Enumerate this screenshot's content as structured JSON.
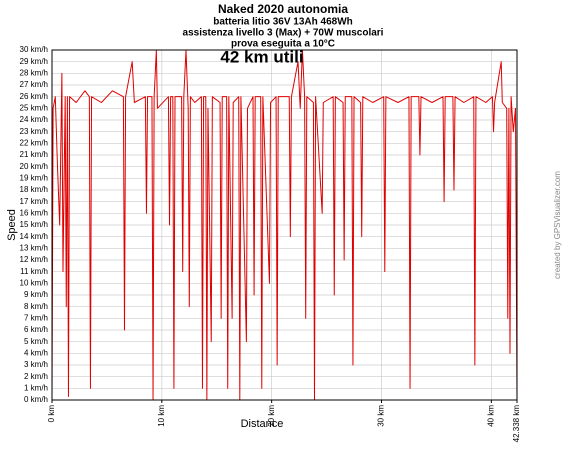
{
  "chart_data": {
    "type": "line",
    "title": "Naked 2020 autonomia",
    "subtitle": [
      "batteria litio 36V  13Ah   468Wh",
      "assistenza livello 3 (Max) + 70W muscolari",
      "prova eseguita a 10°C"
    ],
    "annotation": "42 km utili",
    "x_label": "Distance",
    "y_label": "Speed",
    "credit": "created by GPSVisualizer.com",
    "grid": true,
    "xlim": [
      0,
      42.338
    ],
    "ylim": [
      0,
      30
    ],
    "xticks": [
      {
        "value": 0,
        "label": "0 km"
      },
      {
        "value": 10,
        "label": "10 km"
      },
      {
        "value": 20,
        "label": "20 km"
      },
      {
        "value": 30,
        "label": "30 km"
      },
      {
        "value": 40,
        "label": "40 km"
      },
      {
        "value": 42.338,
        "label": "42.338 km"
      }
    ],
    "yticks": [
      {
        "value": 0,
        "label": "0 km/h"
      },
      {
        "value": 1,
        "label": "1 km/h"
      },
      {
        "value": 2,
        "label": "2 km/h"
      },
      {
        "value": 3,
        "label": "3 km/h"
      },
      {
        "value": 4,
        "label": "4 km/h"
      },
      {
        "value": 5,
        "label": "5 km/h"
      },
      {
        "value": 6,
        "label": "6 km/h"
      },
      {
        "value": 7,
        "label": "7 km/h"
      },
      {
        "value": 8,
        "label": "8 km/h"
      },
      {
        "value": 9,
        "label": "9 km/h"
      },
      {
        "value": 10,
        "label": "10 km/h"
      },
      {
        "value": 11,
        "label": "11 km/h"
      },
      {
        "value": 12,
        "label": "12 km/h"
      },
      {
        "value": 13,
        "label": "13 km/h"
      },
      {
        "value": 14,
        "label": "14 km/h"
      },
      {
        "value": 15,
        "label": "15 km/h"
      },
      {
        "value": 16,
        "label": "16 km/h"
      },
      {
        "value": 17,
        "label": "17 km/h"
      },
      {
        "value": 18,
        "label": "18 km/h"
      },
      {
        "value": 19,
        "label": "19 km/h"
      },
      {
        "value": 20,
        "label": "20 km/h"
      },
      {
        "value": 21,
        "label": "21 km/h"
      },
      {
        "value": 22,
        "label": "22 km/h"
      },
      {
        "value": 23,
        "label": "23 km/h"
      },
      {
        "value": 24,
        "label": "24 km/h"
      },
      {
        "value": 25,
        "label": "25 km/h"
      },
      {
        "value": 26,
        "label": "26 km/h"
      },
      {
        "value": 27,
        "label": "27 km/h"
      },
      {
        "value": 28,
        "label": "28 km/h"
      },
      {
        "value": 29,
        "label": "29 km/h"
      },
      {
        "value": 30,
        "label": "30 km/h"
      }
    ],
    "color": "#e00000",
    "x": [
      0,
      0.1,
      0.3,
      0.5,
      0.7,
      0.9,
      1.0,
      1.2,
      1.3,
      1.4,
      1.5,
      1.6,
      2.2,
      3.0,
      3.4,
      3.5,
      3.6,
      4.5,
      5.5,
      6.5,
      6.6,
      6.7,
      7.3,
      7.5,
      8.5,
      8.6,
      8.7,
      9.1,
      9.2,
      9.3,
      9.5,
      9.6,
      10.6,
      10.7,
      10.8,
      11.0,
      11.1,
      11.2,
      11.8,
      11.9,
      12.0,
      12.2,
      12.4,
      12.5,
      12.6,
      13.0,
      13.6,
      13.7,
      13.8,
      14.0,
      14.1,
      14.2,
      14.5,
      14.6,
      15.3,
      15.4,
      15.5,
      15.9,
      16.0,
      16.1,
      16.4,
      16.5,
      17.0,
      17.1,
      17.2,
      17.7,
      17.8,
      18.3,
      18.4,
      18.5,
      19.0,
      19.1,
      19.2,
      19.8,
      19.9,
      20.4,
      20.5,
      20.6,
      21.6,
      21.7,
      21.8,
      22.4,
      22.6,
      22.8,
      23.0,
      23.1,
      23.2,
      23.8,
      23.9,
      24.0,
      24.6,
      24.7,
      25.6,
      25.7,
      25.8,
      26.5,
      26.6,
      26.7,
      27.3,
      27.4,
      27.5,
      28.1,
      28.2,
      28.3,
      29.2,
      30.2,
      30.3,
      30.4,
      31.5,
      32.5,
      32.6,
      32.7,
      33.4,
      33.5,
      33.6,
      34.6,
      35.6,
      35.7,
      35.8,
      36.5,
      36.6,
      36.7,
      37.5,
      38.4,
      38.5,
      38.6,
      39.5,
      40.1,
      40.2,
      40.3,
      40.9,
      41.0,
      41.4,
      41.5,
      41.6,
      41.7,
      41.8,
      42.0,
      42.2,
      42.338
    ],
    "values": [
      0,
      25,
      26,
      20,
      15,
      28,
      11,
      26,
      8,
      26,
      0.3,
      26,
      25.5,
      26.5,
      26,
      1,
      26,
      25.5,
      26.5,
      26,
      6,
      26,
      29,
      25.5,
      26,
      16,
      26,
      26,
      0,
      26,
      30,
      25,
      26,
      15,
      26,
      26,
      1,
      26,
      26,
      11,
      26,
      30,
      25,
      8,
      26,
      25.5,
      26,
      1,
      26,
      26,
      0,
      25,
      5,
      26,
      25.5,
      7,
      26,
      26,
      1,
      26,
      7,
      25.5,
      26,
      0,
      26,
      5,
      25,
      26,
      9,
      26,
      26,
      1,
      26,
      10,
      25.5,
      26,
      3,
      26,
      26,
      14,
      26,
      29,
      25,
      30,
      26,
      7,
      26,
      25.5,
      0,
      26,
      16,
      25.5,
      26,
      9,
      26,
      25.5,
      12,
      26,
      26,
      3,
      26,
      25.5,
      14,
      26,
      25.5,
      26,
      11,
      26,
      25.5,
      26,
      1,
      26,
      26,
      21,
      26,
      25.5,
      26,
      17,
      26,
      26,
      18,
      26,
      25.5,
      26,
      3,
      26,
      25.5,
      26,
      23,
      25.5,
      29,
      25.5,
      25,
      7,
      25,
      4,
      26,
      23,
      25,
      0
    ]
  }
}
